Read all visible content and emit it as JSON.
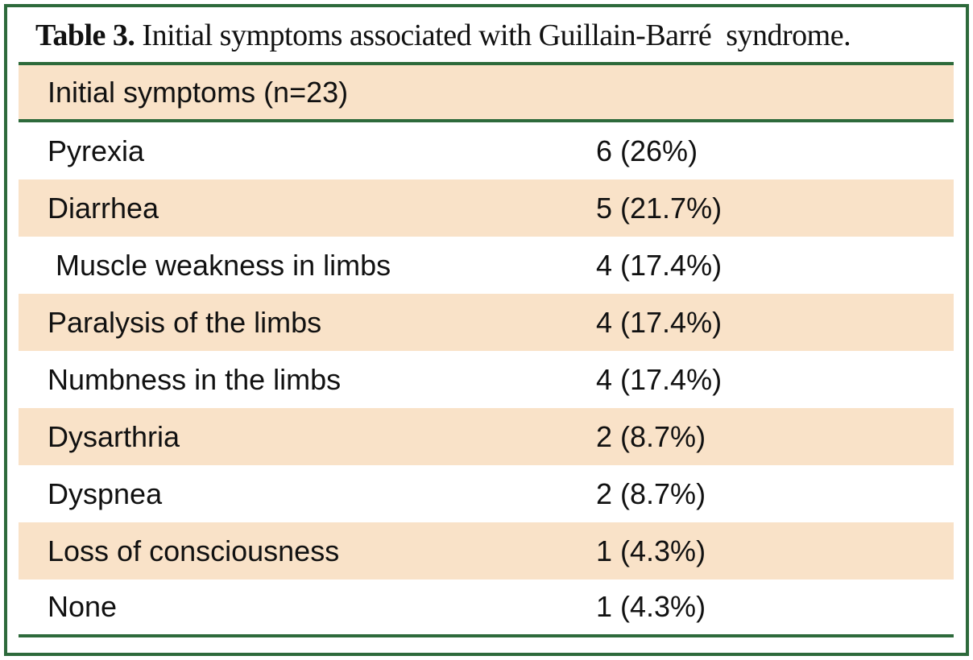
{
  "caption": {
    "label": "Table 3.",
    "text": " Initial symptoms associated with Guillain-Barré  syndrome."
  },
  "table": {
    "header": "Initial symptoms (n=23)",
    "rows": [
      {
        "symptom": "Pyrexia",
        "value": "6 (26%)"
      },
      {
        "symptom": "Diarrhea",
        "value": "5 (21.7%)"
      },
      {
        "symptom": " Muscle weakness in limbs",
        "value": "4 (17.4%)"
      },
      {
        "symptom": "Paralysis of the limbs",
        "value": "4 (17.4%)"
      },
      {
        "symptom": "Numbness in the limbs",
        "value": "4 (17.4%)"
      },
      {
        "symptom": "Dysarthria",
        "value": "2 (8.7%)"
      },
      {
        "symptom": "Dyspnea",
        "value": "2 (8.7%)"
      },
      {
        "symptom": "Loss of consciousness",
        "value": "1 (4.3%)"
      },
      {
        "symptom": "None",
        "value": "1 (4.3%)"
      }
    ]
  },
  "colors": {
    "rule": "#2d6a3b",
    "shade": "#f9e2c8",
    "text": "#111111"
  }
}
